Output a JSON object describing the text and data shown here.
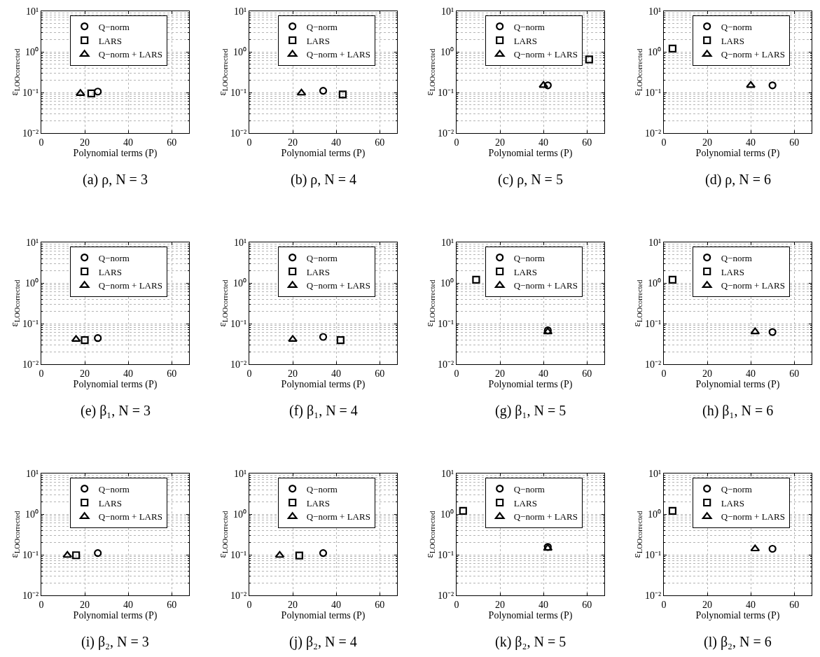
{
  "chart_data": [
    {
      "type": "scatter",
      "title": "(a) ρ, N = 3",
      "xlabel": "Polynomial terms (P)",
      "ylabel": "ε$_{LOOcorrected}$",
      "xlim": [
        0,
        68
      ],
      "xticks": [
        0,
        20,
        40,
        60
      ],
      "ylim": [
        0.01,
        10
      ],
      "yticks": [
        {
          "value": 0.01,
          "label": "10⁻²"
        },
        {
          "value": 0.1,
          "label": "10⁻¹"
        },
        {
          "value": 1,
          "label": "10⁰"
        },
        {
          "value": 10,
          "label": "10¹"
        }
      ],
      "log": "y",
      "grid": true,
      "legend": "top",
      "series": [
        {
          "name": "Q−norm",
          "color": "#000000",
          "marker": "circle",
          "x": [
            26
          ],
          "values": [
            0.105
          ]
        },
        {
          "name": "LARS",
          "color": "#000000",
          "marker": "square",
          "x": [
            23
          ],
          "values": [
            0.095
          ]
        },
        {
          "name": "Q−norm + LARS",
          "color": "#000000",
          "marker": "triangle",
          "x": [
            18
          ],
          "values": [
            0.095
          ]
        }
      ]
    },
    {
      "type": "scatter",
      "title": "(b) ρ, N = 4",
      "xlabel": "Polynomial terms (P)",
      "ylabel": "ε$_{LOOcorrected}$",
      "xlim": [
        0,
        68
      ],
      "xticks": [
        0,
        20,
        40,
        60
      ],
      "ylim": [
        0.01,
        10
      ],
      "yticks": [
        {
          "value": 0.01,
          "label": "10⁻²"
        },
        {
          "value": 0.1,
          "label": "10⁻¹"
        },
        {
          "value": 1,
          "label": "10⁰"
        },
        {
          "value": 10,
          "label": "10¹"
        }
      ],
      "log": "y",
      "grid": true,
      "legend": "top",
      "series": [
        {
          "name": "Q−norm",
          "color": "#000000",
          "marker": "circle",
          "x": [
            34
          ],
          "values": [
            0.11
          ]
        },
        {
          "name": "LARS",
          "color": "#000000",
          "marker": "square",
          "x": [
            43
          ],
          "values": [
            0.089
          ]
        },
        {
          "name": "Q−norm + LARS",
          "color": "#000000",
          "marker": "triangle",
          "x": [
            24
          ],
          "values": [
            0.097
          ]
        }
      ]
    },
    {
      "type": "scatter",
      "title": "(c) ρ, N = 5",
      "xlabel": "Polynomial terms (P)",
      "ylabel": "ε$_{LOOcorrected}$",
      "xlim": [
        0,
        68
      ],
      "xticks": [
        0,
        20,
        40,
        60
      ],
      "ylim": [
        0.01,
        10
      ],
      "yticks": [
        {
          "value": 0.01,
          "label": "10⁻²"
        },
        {
          "value": 0.1,
          "label": "10⁻¹"
        },
        {
          "value": 1,
          "label": "10⁰"
        },
        {
          "value": 10,
          "label": "10¹"
        }
      ],
      "log": "y",
      "grid": true,
      "legend": "top",
      "series": [
        {
          "name": "Q−norm",
          "color": "#000000",
          "marker": "circle",
          "x": [
            42
          ],
          "values": [
            0.15
          ]
        },
        {
          "name": "LARS",
          "color": "#000000",
          "marker": "square",
          "x": [
            61
          ],
          "values": [
            0.65
          ]
        },
        {
          "name": "Q−norm + LARS",
          "color": "#000000",
          "marker": "triangle",
          "x": [
            40
          ],
          "values": [
            0.15
          ]
        }
      ]
    },
    {
      "type": "scatter",
      "title": "(d) ρ, N = 6",
      "xlabel": "Polynomial terms (P)",
      "ylabel": "ε$_{LOOcorrected}$",
      "xlim": [
        0,
        68
      ],
      "xticks": [
        0,
        20,
        40,
        60
      ],
      "ylim": [
        0.01,
        10
      ],
      "yticks": [
        {
          "value": 0.01,
          "label": "10⁻²"
        },
        {
          "value": 0.1,
          "label": "10⁻¹"
        },
        {
          "value": 1,
          "label": "10⁰"
        },
        {
          "value": 10,
          "label": "10¹"
        }
      ],
      "log": "y",
      "grid": true,
      "legend": "top",
      "series": [
        {
          "name": "Q−norm",
          "color": "#000000",
          "marker": "circle",
          "x": [
            50
          ],
          "values": [
            0.15
          ]
        },
        {
          "name": "LARS",
          "color": "#000000",
          "marker": "square",
          "x": [
            4
          ],
          "values": [
            1.2
          ]
        },
        {
          "name": "Q−norm + LARS",
          "color": "#000000",
          "marker": "triangle",
          "x": [
            40
          ],
          "values": [
            0.15
          ]
        }
      ]
    },
    {
      "type": "scatter",
      "title": "(e) β₁, N = 3",
      "xlabel": "Polynomial terms (P)",
      "ylabel": "ε$_{LOOcorrected}$",
      "xlim": [
        0,
        68
      ],
      "xticks": [
        0,
        20,
        40,
        60
      ],
      "ylim": [
        0.01,
        10
      ],
      "yticks": [
        {
          "value": 0.01,
          "label": "10⁻²"
        },
        {
          "value": 0.1,
          "label": "10⁻¹"
        },
        {
          "value": 1,
          "label": "10⁰"
        },
        {
          "value": 10,
          "label": "10¹"
        }
      ],
      "log": "y",
      "grid": true,
      "legend": "top",
      "series": [
        {
          "name": "Q−norm",
          "color": "#000000",
          "marker": "circle",
          "x": [
            26
          ],
          "values": [
            0.044
          ]
        },
        {
          "name": "LARS",
          "color": "#000000",
          "marker": "square",
          "x": [
            20
          ],
          "values": [
            0.039
          ]
        },
        {
          "name": "Q−norm + LARS",
          "color": "#000000",
          "marker": "triangle",
          "x": [
            16
          ],
          "values": [
            0.041
          ]
        }
      ]
    },
    {
      "type": "scatter",
      "title": "(f) β₁, N = 4",
      "xlabel": "Polynomial terms (P)",
      "ylabel": "ε$_{LOOcorrected}$",
      "xlim": [
        0,
        68
      ],
      "xticks": [
        0,
        20,
        40,
        60
      ],
      "ylim": [
        0.01,
        10
      ],
      "yticks": [
        {
          "value": 0.01,
          "label": "10⁻²"
        },
        {
          "value": 0.1,
          "label": "10⁻¹"
        },
        {
          "value": 1,
          "label": "10⁰"
        },
        {
          "value": 10,
          "label": "10¹"
        }
      ],
      "log": "y",
      "grid": true,
      "legend": "top",
      "series": [
        {
          "name": "Q−norm",
          "color": "#000000",
          "marker": "circle",
          "x": [
            34
          ],
          "values": [
            0.047
          ]
        },
        {
          "name": "LARS",
          "color": "#000000",
          "marker": "square",
          "x": [
            42
          ],
          "values": [
            0.039
          ]
        },
        {
          "name": "Q−norm + LARS",
          "color": "#000000",
          "marker": "triangle",
          "x": [
            20
          ],
          "values": [
            0.041
          ]
        }
      ]
    },
    {
      "type": "scatter",
      "title": "(g) β₁, N = 5",
      "xlabel": "Polynomial terms (P)",
      "ylabel": "ε$_{LOOcorrected}$",
      "xlim": [
        0,
        68
      ],
      "xticks": [
        0,
        20,
        40,
        60
      ],
      "ylim": [
        0.01,
        10
      ],
      "yticks": [
        {
          "value": 0.01,
          "label": "10⁻²"
        },
        {
          "value": 0.1,
          "label": "10⁻¹"
        },
        {
          "value": 1,
          "label": "10⁰"
        },
        {
          "value": 10,
          "label": "10¹"
        }
      ],
      "log": "y",
      "grid": true,
      "legend": "top",
      "series": [
        {
          "name": "Q−norm",
          "color": "#000000",
          "marker": "circle",
          "x": [
            42
          ],
          "values": [
            0.068
          ]
        },
        {
          "name": "LARS",
          "color": "#000000",
          "marker": "square",
          "x": [
            9
          ],
          "values": [
            1.2
          ]
        },
        {
          "name": "Q−norm + LARS",
          "color": "#000000",
          "marker": "triangle",
          "x": [
            42
          ],
          "values": [
            0.063
          ]
        }
      ]
    },
    {
      "type": "scatter",
      "title": "(h) β₁, N = 6",
      "xlabel": "Polynomial terms (P)",
      "ylabel": "ε$_{LOOcorrected}$",
      "xlim": [
        0,
        68
      ],
      "xticks": [
        0,
        20,
        40,
        60
      ],
      "ylim": [
        0.01,
        10
      ],
      "yticks": [
        {
          "value": 0.01,
          "label": "10⁻²"
        },
        {
          "value": 0.1,
          "label": "10⁻¹"
        },
        {
          "value": 1,
          "label": "10⁰"
        },
        {
          "value": 10,
          "label": "10¹"
        }
      ],
      "log": "y",
      "grid": true,
      "legend": "top",
      "series": [
        {
          "name": "Q−norm",
          "color": "#000000",
          "marker": "circle",
          "x": [
            50
          ],
          "values": [
            0.062
          ]
        },
        {
          "name": "LARS",
          "color": "#000000",
          "marker": "square",
          "x": [
            4
          ],
          "values": [
            1.2
          ]
        },
        {
          "name": "Q−norm + LARS",
          "color": "#000000",
          "marker": "triangle",
          "x": [
            42
          ],
          "values": [
            0.063
          ]
        }
      ]
    },
    {
      "type": "scatter",
      "title": "(i) β₂, N = 3",
      "xlabel": "Polynomial terms (P)",
      "ylabel": "ε$_{LOOcorrected}$",
      "xlim": [
        0,
        68
      ],
      "xticks": [
        0,
        20,
        40,
        60
      ],
      "ylim": [
        0.01,
        10
      ],
      "yticks": [
        {
          "value": 0.01,
          "label": "10⁻²"
        },
        {
          "value": 0.1,
          "label": "10⁻¹"
        },
        {
          "value": 1,
          "label": "10⁰"
        },
        {
          "value": 10,
          "label": "10¹"
        }
      ],
      "log": "y",
      "grid": true,
      "legend": "top",
      "series": [
        {
          "name": "Q−norm",
          "color": "#000000",
          "marker": "circle",
          "x": [
            26
          ],
          "values": [
            0.11
          ]
        },
        {
          "name": "LARS",
          "color": "#000000",
          "marker": "square",
          "x": [
            16
          ],
          "values": [
            0.097
          ]
        },
        {
          "name": "Q−norm + LARS",
          "color": "#000000",
          "marker": "triangle",
          "x": [
            12
          ],
          "values": [
            0.097
          ]
        }
      ]
    },
    {
      "type": "scatter",
      "title": "(j) β₂, N = 4",
      "xlabel": "Polynomial terms (P)",
      "ylabel": "ε$_{LOOcorrected}$",
      "xlim": [
        0,
        68
      ],
      "xticks": [
        0,
        20,
        40,
        60
      ],
      "ylim": [
        0.01,
        10
      ],
      "yticks": [
        {
          "value": 0.01,
          "label": "10⁻²"
        },
        {
          "value": 0.1,
          "label": "10⁻¹"
        },
        {
          "value": 1,
          "label": "10⁰"
        },
        {
          "value": 10,
          "label": "10¹"
        }
      ],
      "log": "y",
      "grid": true,
      "legend": "top",
      "series": [
        {
          "name": "Q−norm",
          "color": "#000000",
          "marker": "circle",
          "x": [
            34
          ],
          "values": [
            0.11
          ]
        },
        {
          "name": "LARS",
          "color": "#000000",
          "marker": "square",
          "x": [
            23
          ],
          "values": [
            0.096
          ]
        },
        {
          "name": "Q−norm + LARS",
          "color": "#000000",
          "marker": "triangle",
          "x": [
            14
          ],
          "values": [
            0.097
          ]
        }
      ]
    },
    {
      "type": "scatter",
      "title": "(k) β₂, N = 5",
      "xlabel": "Polynomial terms (P)",
      "ylabel": "ε$_{LOOcorrected}$",
      "xlim": [
        0,
        68
      ],
      "xticks": [
        0,
        20,
        40,
        60
      ],
      "ylim": [
        0.01,
        10
      ],
      "yticks": [
        {
          "value": 0.01,
          "label": "10⁻²"
        },
        {
          "value": 0.1,
          "label": "10⁻¹"
        },
        {
          "value": 1,
          "label": "10⁰"
        },
        {
          "value": 10,
          "label": "10¹"
        }
      ],
      "log": "y",
      "grid": true,
      "legend": "top",
      "series": [
        {
          "name": "Q−norm",
          "color": "#000000",
          "marker": "circle",
          "x": [
            42
          ],
          "values": [
            0.156
          ]
        },
        {
          "name": "LARS",
          "color": "#000000",
          "marker": "square",
          "x": [
            3
          ],
          "values": [
            1.2
          ]
        },
        {
          "name": "Q−norm + LARS",
          "color": "#000000",
          "marker": "triangle",
          "x": [
            42
          ],
          "values": [
            0.145
          ]
        }
      ]
    },
    {
      "type": "scatter",
      "title": "(l) β₂, N = 6",
      "xlabel": "Polynomial terms (P)",
      "ylabel": "ε$_{LOOcorrected}$",
      "xlim": [
        0,
        68
      ],
      "xticks": [
        0,
        20,
        40,
        60
      ],
      "ylim": [
        0.01,
        10
      ],
      "yticks": [
        {
          "value": 0.01,
          "label": "10⁻²"
        },
        {
          "value": 0.1,
          "label": "10⁻¹"
        },
        {
          "value": 1,
          "label": "10⁰"
        },
        {
          "value": 10,
          "label": "10¹"
        }
      ],
      "log": "y",
      "grid": true,
      "legend": "top",
      "series": [
        {
          "name": "Q−norm",
          "color": "#000000",
          "marker": "circle",
          "x": [
            50
          ],
          "values": [
            0.14
          ]
        },
        {
          "name": "LARS",
          "color": "#000000",
          "marker": "square",
          "x": [
            4
          ],
          "values": [
            1.2
          ]
        },
        {
          "name": "Q−norm + LARS",
          "color": "#000000",
          "marker": "triangle",
          "x": [
            42
          ],
          "values": [
            0.14
          ]
        }
      ]
    }
  ]
}
